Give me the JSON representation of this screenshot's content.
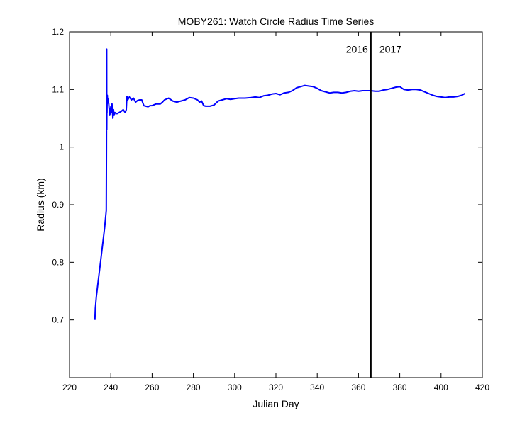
{
  "chart_data": {
    "type": "line",
    "title": "MOBY261: Watch Circle Radius Time Series",
    "xlabel": "Julian Day",
    "ylabel": "Radius (km)",
    "xlim": [
      220,
      420
    ],
    "ylim": [
      0.6,
      1.2
    ],
    "xticks": [
      220,
      240,
      260,
      280,
      300,
      320,
      340,
      360,
      380,
      400,
      420
    ],
    "yticks": [
      0.7,
      0.8,
      0.9,
      1,
      1.1,
      1.2
    ],
    "grid": false,
    "series": [
      {
        "name": "Radius",
        "color": "#0000ff",
        "x": [
          232.3,
          232.5,
          233.0,
          234.0,
          235.0,
          236.0,
          237.0,
          237.8,
          237.9,
          238.0,
          238.05,
          238.1,
          238.15,
          238.2,
          238.25,
          238.3,
          238.4,
          238.5,
          239.0,
          239.5,
          240.0,
          240.3,
          240.6,
          241.0,
          241.3,
          241.6,
          242.0,
          243.0,
          244.0,
          245.0,
          246.0,
          247.0,
          247.5,
          247.8,
          248.0,
          248.2,
          249.0,
          250.0,
          251.0,
          252.0,
          253.0,
          254.0,
          255.0,
          256.0,
          257.0,
          258.0,
          259.0,
          260.0,
          262.0,
          264.0,
          265.0,
          266.0,
          268.0,
          270.0,
          272.0,
          274.0,
          276.0,
          278.0,
          280.0,
          282.0,
          283.0,
          284.0,
          285.0,
          286.0,
          288.0,
          290.0,
          292.0,
          294.0,
          296.0,
          298.0,
          300.0,
          302.0,
          305.0,
          308.0,
          310.0,
          312.0,
          314.0,
          316.0,
          318.0,
          320.0,
          322.0,
          324.0,
          326.0,
          328.0,
          330.0,
          332.0,
          334.0,
          336.0,
          338.0,
          340.0,
          342.0,
          344.0,
          346.0,
          348.0,
          350.0,
          352.0,
          354.0,
          356.0,
          358.0,
          360.0,
          362.0,
          364.0,
          366.0,
          368.0,
          370.0,
          372.0,
          374.0,
          376.0,
          378.0,
          380.0,
          382.0,
          384.0,
          386.0,
          388.0,
          390.0,
          392.0,
          394.0,
          396.0,
          398.0,
          400.0,
          402.0,
          404.0,
          406.0,
          408.0,
          410.0,
          411.5
        ],
        "y": [
          0.7,
          0.72,
          0.74,
          0.77,
          0.8,
          0.83,
          0.86,
          0.89,
          1.0,
          1.17,
          1.03,
          1.09,
          1.06,
          1.085,
          1.075,
          1.09,
          1.08,
          1.085,
          1.075,
          1.055,
          1.07,
          1.06,
          1.075,
          1.05,
          1.065,
          1.055,
          1.06,
          1.058,
          1.06,
          1.062,
          1.065,
          1.06,
          1.065,
          1.088,
          1.085,
          1.082,
          1.087,
          1.082,
          1.085,
          1.078,
          1.081,
          1.082,
          1.082,
          1.072,
          1.071,
          1.07,
          1.072,
          1.072,
          1.075,
          1.075,
          1.078,
          1.082,
          1.085,
          1.08,
          1.078,
          1.08,
          1.082,
          1.086,
          1.085,
          1.082,
          1.078,
          1.08,
          1.072,
          1.071,
          1.071,
          1.073,
          1.08,
          1.082,
          1.084,
          1.083,
          1.084,
          1.085,
          1.085,
          1.086,
          1.087,
          1.086,
          1.089,
          1.09,
          1.092,
          1.093,
          1.091,
          1.094,
          1.095,
          1.098,
          1.103,
          1.105,
          1.107,
          1.106,
          1.105,
          1.102,
          1.098,
          1.096,
          1.094,
          1.095,
          1.095,
          1.094,
          1.095,
          1.097,
          1.098,
          1.097,
          1.098,
          1.098,
          1.098,
          1.097,
          1.097,
          1.099,
          1.1,
          1.102,
          1.104,
          1.105,
          1.1,
          1.099,
          1.1,
          1.1,
          1.099,
          1.096,
          1.093,
          1.09,
          1.088,
          1.087,
          1.086,
          1.087,
          1.087,
          1.088,
          1.09,
          1.093
        ]
      }
    ],
    "vline": {
      "x": 366,
      "color": "#000000"
    },
    "annotations": [
      {
        "text": "2016",
        "x": 366,
        "y": 1.17,
        "align": "left-of-line"
      },
      {
        "text": "2017",
        "x": 366,
        "y": 1.17,
        "align": "right-of-line"
      }
    ]
  }
}
